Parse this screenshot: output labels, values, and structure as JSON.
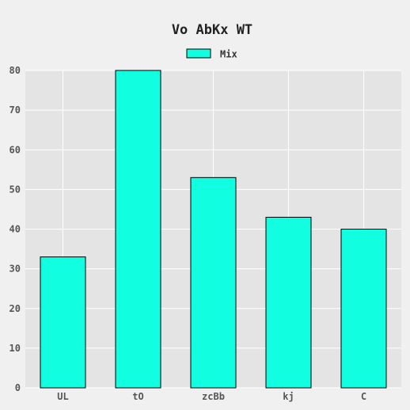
{
  "colors": {
    "figure_background": "#f0f0f0",
    "plot_background": "#e4e4e4",
    "grid": "#ffffff",
    "bar_fill": "#11ffe0",
    "bar_edge": "#000000"
  },
  "chart_data": {
    "type": "bar",
    "title": "Vo AbKx WT",
    "xlabel": "",
    "ylabel": "",
    "categories": [
      "UL",
      "tO",
      "zcBb",
      "kj",
      "C"
    ],
    "series": [
      {
        "name": "Mix",
        "values": [
          33,
          80,
          53,
          43,
          40
        ]
      }
    ],
    "ylim": [
      0,
      80
    ],
    "yticks": [
      "0",
      "10",
      "20",
      "30",
      "40",
      "50",
      "60",
      "70",
      "80"
    ],
    "grid": true,
    "legend_position": "top-center"
  }
}
